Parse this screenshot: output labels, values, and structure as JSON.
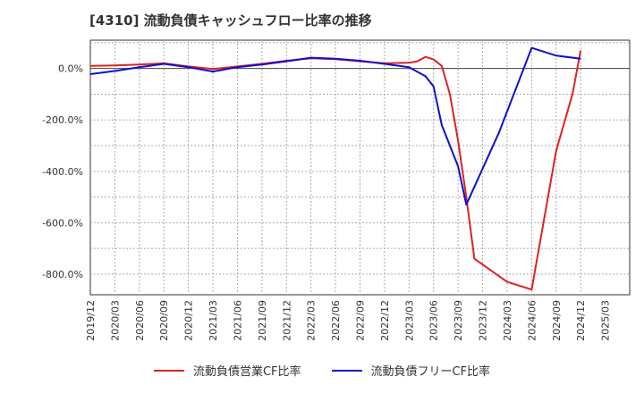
{
  "chart_data": {
    "type": "line",
    "title": "[4310]  流動負債キャッシュフロー比率の推移",
    "xlabel": "",
    "ylabel": "",
    "ylim": [
      -880,
      110
    ],
    "yticks": [
      0,
      -200,
      -400,
      -600,
      -800
    ],
    "ytick_labels": [
      "0.0%",
      "-200.0%",
      "-400.0%",
      "-600.0%",
      "-800.0%"
    ],
    "xlim": [
      0,
      66
    ],
    "xtick_labels": [
      "2019/12",
      "2020/03",
      "2020/06",
      "2020/09",
      "2020/12",
      "2021/03",
      "2021/06",
      "2021/09",
      "2021/12",
      "2022/03",
      "2022/06",
      "2022/09",
      "2022/12",
      "2023/03",
      "2023/06",
      "2023/09",
      "2023/12",
      "2024/03",
      "2024/06",
      "2024/09",
      "2024/12",
      "2025/03"
    ],
    "series": [
      {
        "name": "流動負債営業CF比率",
        "color": "#dd2222",
        "points": [
          [
            0,
            10
          ],
          [
            3,
            12
          ],
          [
            6,
            15
          ],
          [
            9,
            20
          ],
          [
            12,
            8
          ],
          [
            15,
            -2
          ],
          [
            18,
            8
          ],
          [
            21,
            18
          ],
          [
            24,
            30
          ],
          [
            27,
            40
          ],
          [
            30,
            36
          ],
          [
            33,
            28
          ],
          [
            36,
            20
          ],
          [
            39,
            22
          ],
          [
            40,
            28
          ],
          [
            41,
            45
          ],
          [
            42,
            35
          ],
          [
            43,
            10
          ],
          [
            44,
            -100
          ],
          [
            45,
            -280
          ],
          [
            46,
            -500
          ],
          [
            47,
            -740
          ],
          [
            51,
            -830
          ],
          [
            54,
            -860
          ],
          [
            57,
            -320
          ],
          [
            59,
            -100
          ],
          [
            60,
            70
          ]
        ]
      },
      {
        "name": "流動負債フリーCF比率",
        "color": "#1010cc",
        "points": [
          [
            0,
            -22
          ],
          [
            3,
            -10
          ],
          [
            6,
            5
          ],
          [
            9,
            18
          ],
          [
            12,
            5
          ],
          [
            15,
            -12
          ],
          [
            18,
            5
          ],
          [
            21,
            15
          ],
          [
            24,
            28
          ],
          [
            27,
            42
          ],
          [
            30,
            38
          ],
          [
            33,
            30
          ],
          [
            36,
            18
          ],
          [
            39,
            5
          ],
          [
            41,
            -30
          ],
          [
            42,
            -70
          ],
          [
            43,
            -220
          ],
          [
            44,
            -300
          ],
          [
            45,
            -380
          ],
          [
            46,
            -530
          ],
          [
            50,
            -250
          ],
          [
            54,
            80
          ],
          [
            57,
            50
          ],
          [
            60,
            38
          ]
        ]
      }
    ]
  }
}
